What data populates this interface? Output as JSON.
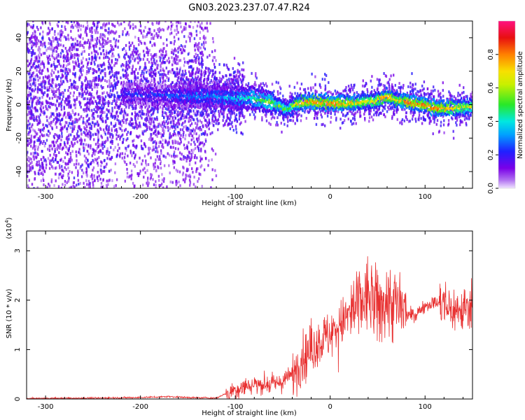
{
  "title": "GN03.2023.237.07.47.R24",
  "chart_data": [
    {
      "type": "heatmap",
      "xlabel": "Height of straight line (km)",
      "ylabel": "Frequency (Hz)",
      "xlim": [
        -320,
        150
      ],
      "ylim": [
        -50,
        50
      ],
      "xticks": [
        -300,
        -200,
        -100,
        0,
        100
      ],
      "yticks": [
        -40,
        -20,
        0,
        20,
        40
      ],
      "colorbar": {
        "label": "Normalized spectral amplitude",
        "range": [
          0.0,
          1.0
        ],
        "ticks": [
          "0.0",
          "0.2",
          "0.4",
          "0.6",
          "0.8"
        ],
        "colors": [
          "#e8d8f8",
          "#7a00e8",
          "#1428ff",
          "#00d0ff",
          "#28e828",
          "#f8f000",
          "#ff8000",
          "#e81010",
          "#ff1080"
        ]
      },
      "ridge": {
        "x": [
          -320,
          -300,
          -250,
          -200,
          -150,
          -120,
          -100,
          -80,
          -60,
          -45,
          -35,
          -20,
          0,
          20,
          40,
          50,
          60,
          70,
          80,
          100,
          110,
          130,
          150
        ],
        "frequency": [
          8,
          8,
          7,
          6,
          5,
          5,
          4,
          4,
          1,
          -3,
          1,
          2,
          1,
          1,
          2,
          3,
          5,
          3,
          2,
          0,
          -2,
          -2,
          -1
        ],
        "amplitude": [
          0.15,
          0.15,
          0.15,
          0.2,
          0.25,
          0.3,
          0.35,
          0.45,
          0.55,
          0.5,
          0.7,
          0.8,
          0.8,
          0.75,
          0.65,
          0.7,
          0.75,
          0.7,
          0.8,
          0.8,
          0.8,
          0.7,
          0.6
        ]
      }
    },
    {
      "type": "line",
      "xlabel": "Height of straight line (km)",
      "ylabel": "SNR (10 * v/v)",
      "scale_label": "(x10",
      "scale_exponent": "4",
      "scale_suffix": ")",
      "xlim": [
        -320,
        150
      ],
      "ylim": [
        0,
        3.4
      ],
      "xticks": [
        -300,
        -200,
        -100,
        0,
        100
      ],
      "yticks": [
        0,
        1,
        2,
        3
      ],
      "series": [
        {
          "color": "#e83030",
          "x": [
            -320,
            -250,
            -200,
            -170,
            -150,
            -120,
            -100,
            -80,
            -60,
            -50,
            -40,
            -30,
            -20,
            -10,
            0,
            10,
            20,
            30,
            40,
            50,
            60,
            70,
            80,
            90,
            100,
            110,
            120,
            130,
            140,
            150
          ],
          "y": [
            0.01,
            0.02,
            0.03,
            0.05,
            0.03,
            0.02,
            0.2,
            0.3,
            0.3,
            0.35,
            0.5,
            0.8,
            1.0,
            1.2,
            1.3,
            1.5,
            1.7,
            1.9,
            2.1,
            1.8,
            2.0,
            1.9,
            1.7,
            1.7,
            1.9,
            1.95,
            1.9,
            1.8,
            1.8,
            1.9
          ]
        }
      ]
    }
  ]
}
